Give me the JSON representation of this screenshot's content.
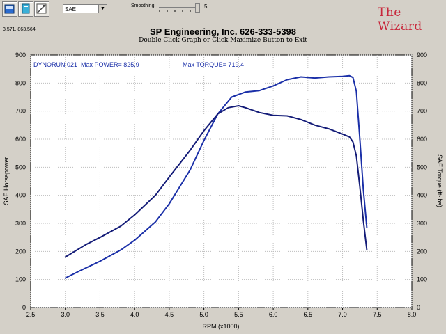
{
  "toolbar": {
    "mode_value": "SAE",
    "smoothing_label": "Smoothing",
    "smoothing_value": "5",
    "buttons": [
      {
        "name": "print-icon"
      },
      {
        "name": "copy-icon"
      },
      {
        "name": "zoom-icon"
      }
    ]
  },
  "logo": {
    "text": "The Wizard"
  },
  "cursor_readout": "3.571, 863.564",
  "chart_data": {
    "type": "line",
    "title": "SP Engineering, Inc. 626-333-5398",
    "subtitle": "Double Click Graph or Click Maximize Button to Exit",
    "xlabel": "RPM (x1000)",
    "ylabel_left": "SAE Horsepower",
    "ylabel_right": "SAE Torque (ft-lbs)",
    "xlim": [
      2.5,
      8.0
    ],
    "ylim": [
      0,
      900
    ],
    "x_ticks": [
      "2.5",
      "3.0",
      "3.5",
      "4.0",
      "4.5",
      "5.0",
      "5.5",
      "6.0",
      "6.5",
      "7.0",
      "7.5",
      "8.0"
    ],
    "y_ticks": [
      "0",
      "100",
      "200",
      "300",
      "400",
      "500",
      "600",
      "700",
      "800",
      "900"
    ],
    "grid": true,
    "annotations": {
      "run": "DYNORUN 021",
      "max_power": "Max POWER= 825.9",
      "max_torque": "Max TORQUE= 719.4"
    },
    "series": [
      {
        "color": "#1a2fa8",
        "x": [
          3.0,
          3.2,
          3.5,
          3.8,
          4.0,
          4.3,
          4.5,
          4.8,
          5.0,
          5.2,
          5.4,
          5.6,
          5.8,
          6.0,
          6.2,
          6.4,
          6.6,
          6.8,
          7.0,
          7.1,
          7.15,
          7.2,
          7.25,
          7.3,
          7.35
        ],
        "y": [
          105,
          130,
          165,
          205,
          240,
          305,
          370,
          490,
          595,
          690,
          750,
          768,
          773,
          790,
          812,
          822,
          818,
          822,
          824,
          826,
          820,
          770,
          600,
          420,
          285
        ]
      },
      {
        "color": "#141c78",
        "x": [
          3.0,
          3.1,
          3.3,
          3.5,
          3.8,
          4.0,
          4.3,
          4.5,
          4.8,
          5.0,
          5.2,
          5.35,
          5.5,
          5.6,
          5.8,
          6.0,
          6.2,
          6.4,
          6.6,
          6.8,
          7.0,
          7.1,
          7.15,
          7.2,
          7.25,
          7.3,
          7.35
        ],
        "y": [
          180,
          195,
          225,
          250,
          290,
          330,
          400,
          465,
          560,
          630,
          690,
          712,
          719,
          712,
          695,
          685,
          683,
          670,
          650,
          637,
          618,
          608,
          590,
          540,
          430,
          310,
          205
        ]
      }
    ]
  }
}
